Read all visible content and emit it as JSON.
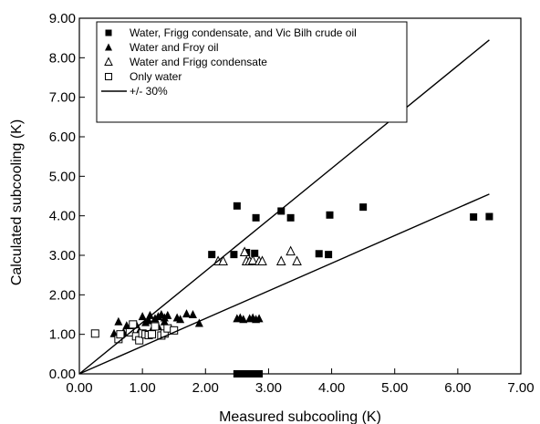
{
  "chart_data": {
    "type": "scatter",
    "xlabel": "Measured subcooling (K)",
    "ylabel": "Calculated subcooling (K)",
    "xlim": [
      0,
      7
    ],
    "ylim": [
      0,
      9
    ],
    "xticks": [
      "0.00",
      "1.00",
      "2.00",
      "3.00",
      "4.00",
      "5.00",
      "6.00",
      "7.00"
    ],
    "yticks": [
      "0.00",
      "1.00",
      "2.00",
      "3.00",
      "4.00",
      "5.00",
      "6.00",
      "7.00",
      "8.00",
      "9.00"
    ],
    "grid": false,
    "legend_position": "top-left",
    "series": [
      {
        "name": "Water, Frigg condensate, and Vic Bilh crude oil",
        "marker": "filled-square",
        "points": [
          [
            2.1,
            3.02
          ],
          [
            2.45,
            3.02
          ],
          [
            2.5,
            4.25
          ],
          [
            2.65,
            3.07
          ],
          [
            2.78,
            3.05
          ],
          [
            2.8,
            3.95
          ],
          [
            3.2,
            4.12
          ],
          [
            3.35,
            3.95
          ],
          [
            3.8,
            3.04
          ],
          [
            3.95,
            3.02
          ],
          [
            3.97,
            4.02
          ],
          [
            4.5,
            4.22
          ],
          [
            6.25,
            3.97
          ],
          [
            6.5,
            3.98
          ],
          [
            2.5,
            0.0
          ],
          [
            2.55,
            0.0
          ],
          [
            2.65,
            0.0
          ],
          [
            2.75,
            0.0
          ],
          [
            2.8,
            0.0
          ],
          [
            2.85,
            0.0
          ]
        ]
      },
      {
        "name": "Water and Froy oil",
        "marker": "filled-triangle",
        "points": [
          [
            0.55,
            1.02
          ],
          [
            0.62,
            1.32
          ],
          [
            0.7,
            1.05
          ],
          [
            0.75,
            1.22
          ],
          [
            0.8,
            1.15
          ],
          [
            0.9,
            1.25
          ],
          [
            0.95,
            1.08
          ],
          [
            1.0,
            1.45
          ],
          [
            1.05,
            1.3
          ],
          [
            1.1,
            1.35
          ],
          [
            1.12,
            1.48
          ],
          [
            1.2,
            1.4
          ],
          [
            1.25,
            1.45
          ],
          [
            1.3,
            1.5
          ],
          [
            1.35,
            1.42
          ],
          [
            1.4,
            1.48
          ],
          [
            1.45,
            1.15
          ],
          [
            1.5,
            1.1
          ],
          [
            1.55,
            1.42
          ],
          [
            1.6,
            1.38
          ],
          [
            1.7,
            1.52
          ],
          [
            1.8,
            1.5
          ],
          [
            1.9,
            1.28
          ],
          [
            1.15,
            1.12
          ],
          [
            1.05,
            1.0
          ],
          [
            1.25,
            1.2
          ],
          [
            1.35,
            1.32
          ],
          [
            2.5,
            1.4
          ],
          [
            2.55,
            1.42
          ],
          [
            2.6,
            1.38
          ],
          [
            2.7,
            1.4
          ],
          [
            2.75,
            1.42
          ],
          [
            2.8,
            1.38
          ],
          [
            2.85,
            1.4
          ]
        ]
      },
      {
        "name": "Water and Frigg condensate",
        "marker": "open-triangle",
        "points": [
          [
            2.2,
            2.85
          ],
          [
            2.28,
            2.85
          ],
          [
            2.62,
            3.08
          ],
          [
            2.65,
            2.85
          ],
          [
            2.7,
            2.85
          ],
          [
            2.75,
            2.87
          ],
          [
            2.85,
            2.85
          ],
          [
            2.9,
            2.85
          ],
          [
            3.2,
            2.85
          ],
          [
            3.35,
            3.1
          ],
          [
            3.45,
            2.85
          ]
        ]
      },
      {
        "name": "Only water",
        "marker": "open-square",
        "points": [
          [
            0.25,
            1.02
          ],
          [
            0.62,
            0.88
          ],
          [
            0.65,
            1.0
          ],
          [
            0.8,
            1.05
          ],
          [
            0.9,
            0.95
          ],
          [
            0.95,
            0.85
          ],
          [
            1.0,
            1.02
          ],
          [
            1.05,
            1.0
          ],
          [
            1.1,
            0.98
          ],
          [
            1.15,
            1.0
          ],
          [
            1.2,
            1.2
          ],
          [
            1.3,
            0.97
          ],
          [
            1.35,
            1.02
          ],
          [
            1.4,
            1.15
          ],
          [
            1.5,
            1.1
          ],
          [
            0.85,
            1.25
          ]
        ]
      },
      {
        "name": "+/- 30%",
        "marker": "line",
        "lines": [
          [
            [
              0,
              0
            ],
            [
              6.5,
              8.45
            ]
          ],
          [
            [
              0,
              0
            ],
            [
              6.5,
              4.55
            ]
          ]
        ]
      }
    ]
  }
}
